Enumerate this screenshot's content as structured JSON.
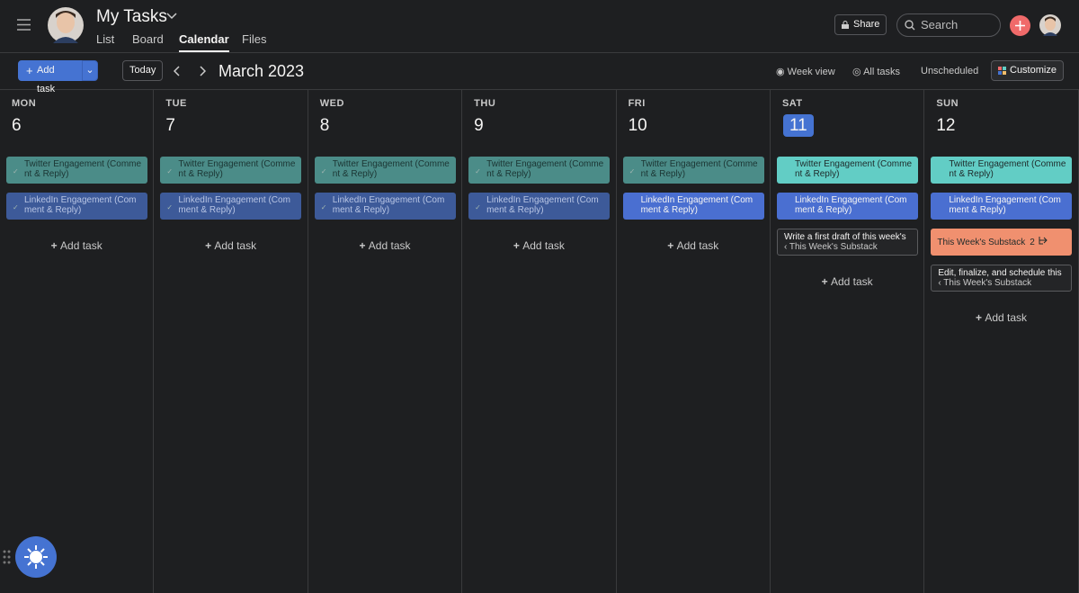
{
  "header": {
    "title": "My Tasks",
    "tabs": [
      "List",
      "Board",
      "Calendar",
      "Files"
    ],
    "active_tab": 2,
    "share": "Share",
    "search": "Search"
  },
  "toolbar": {
    "add_task": "Add task",
    "today": "Today",
    "month": "March 2023",
    "week_view": "Week view",
    "all_tasks": "All tasks",
    "unscheduled": "Unscheduled",
    "customize": "Customize"
  },
  "days": [
    {
      "weekday": "MON",
      "date": 6,
      "add": "Add task",
      "tasks": [
        {
          "title": "Twitter Engagement (Comment & Reply)",
          "done": true,
          "color": "#4b8c88"
        },
        {
          "title": "LinkedIn Engagement (Comment & Reply)",
          "done": true,
          "color": "#3d5a99"
        }
      ]
    },
    {
      "weekday": "TUE",
      "date": 7,
      "add": "Add task",
      "tasks": [
        {
          "title": "Twitter Engagement (Comment & Reply)",
          "done": true,
          "color": "#4b8c88"
        },
        {
          "title": "LinkedIn Engagement (Comment & Reply)",
          "done": true,
          "color": "#3d5a99"
        }
      ]
    },
    {
      "weekday": "WED",
      "date": 8,
      "add": "Add task",
      "tasks": [
        {
          "title": "Twitter Engagement (Comment & Reply)",
          "done": true,
          "color": "#4b8c88"
        },
        {
          "title": "LinkedIn Engagement (Comment & Reply)",
          "done": true,
          "color": "#3d5a99"
        }
      ]
    },
    {
      "weekday": "THU",
      "date": 9,
      "add": "Add task",
      "tasks": [
        {
          "title": "Twitter Engagement (Comment & Reply)",
          "done": true,
          "color": "#4b8c88"
        },
        {
          "title": "LinkedIn Engagement (Comment & Reply)",
          "done": true,
          "color": "#3d5a99"
        }
      ]
    },
    {
      "weekday": "FRI",
      "date": 10,
      "add": "Add task",
      "tasks": [
        {
          "title": "Twitter Engagement (Comment & Reply)",
          "done": true,
          "color": "#4b8c88"
        },
        {
          "title": "LinkedIn Engagement (Comment & Reply)",
          "done": false,
          "color": "#4a6fd1"
        }
      ]
    },
    {
      "weekday": "SAT",
      "date": 11,
      "today": true,
      "add": "Add task",
      "tasks": [
        {
          "title": "Twitter Engagement (Comment & Reply)",
          "done": false,
          "color": "#62cdc5"
        },
        {
          "title": "LinkedIn Engagement (Comment & Reply)",
          "done": false,
          "color": "#4a6fd1"
        },
        {
          "title": "Write a first draft of this week's",
          "parent": "‹ This Week's Substack",
          "done": false,
          "color": "#242527"
        }
      ]
    },
    {
      "weekday": "SUN",
      "date": 12,
      "add": "Add task",
      "tasks": [
        {
          "title": "Twitter Engagement (Comment & Reply)",
          "done": false,
          "color": "#62cdc5"
        },
        {
          "title": "LinkedIn Engagement (Comment & Reply)",
          "done": false,
          "color": "#4a6fd1"
        },
        {
          "title": "This Week's Substack",
          "subtasks": 2,
          "done": false,
          "color": "#f0906f"
        },
        {
          "title": "Edit, finalize, and schedule this",
          "parent": "‹ This Week's Substack",
          "done": false,
          "color": "#242527"
        }
      ]
    }
  ]
}
